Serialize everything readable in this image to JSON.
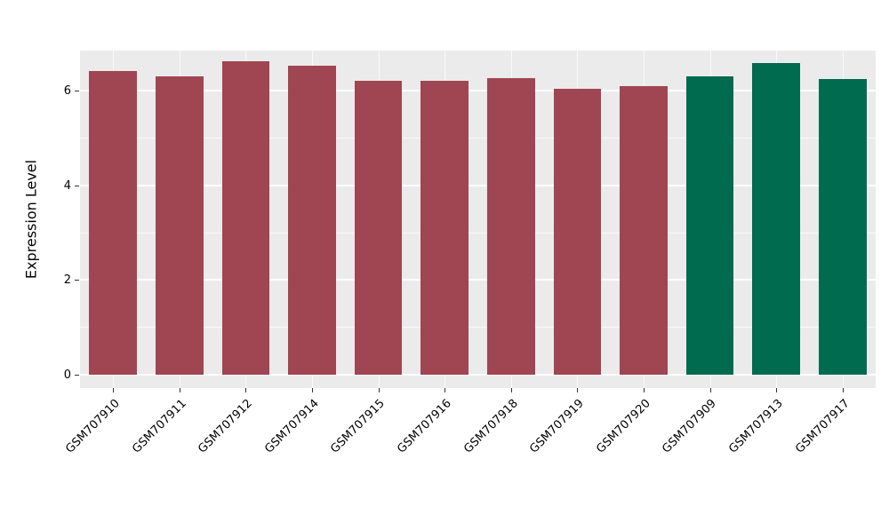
{
  "chart_data": {
    "type": "bar",
    "title": "",
    "xlabel": "",
    "ylabel": "Expression Level",
    "ylim": [
      0,
      6.85
    ],
    "yticks": [
      0,
      2,
      4,
      6
    ],
    "minor_ticks": [
      1,
      3,
      5
    ],
    "grid": true,
    "legend_position": "none",
    "categories": [
      "GSM707910",
      "GSM707911",
      "GSM707912",
      "GSM707914",
      "GSM707915",
      "GSM707916",
      "GSM707918",
      "GSM707919",
      "GSM707920",
      "GSM707909",
      "GSM707913",
      "GSM707917"
    ],
    "values": [
      6.42,
      6.3,
      6.62,
      6.53,
      6.22,
      6.22,
      6.27,
      6.05,
      6.1,
      6.3,
      6.58,
      6.25
    ],
    "groups": [
      "red",
      "red",
      "red",
      "red",
      "red",
      "red",
      "red",
      "red",
      "red",
      "green",
      "green",
      "green"
    ],
    "colors": {
      "red": "#A04552",
      "green": "#006B4F"
    },
    "panel_background": "#EBEBEB",
    "grid_color": "#FFFFFF",
    "text_color": "#000000"
  }
}
